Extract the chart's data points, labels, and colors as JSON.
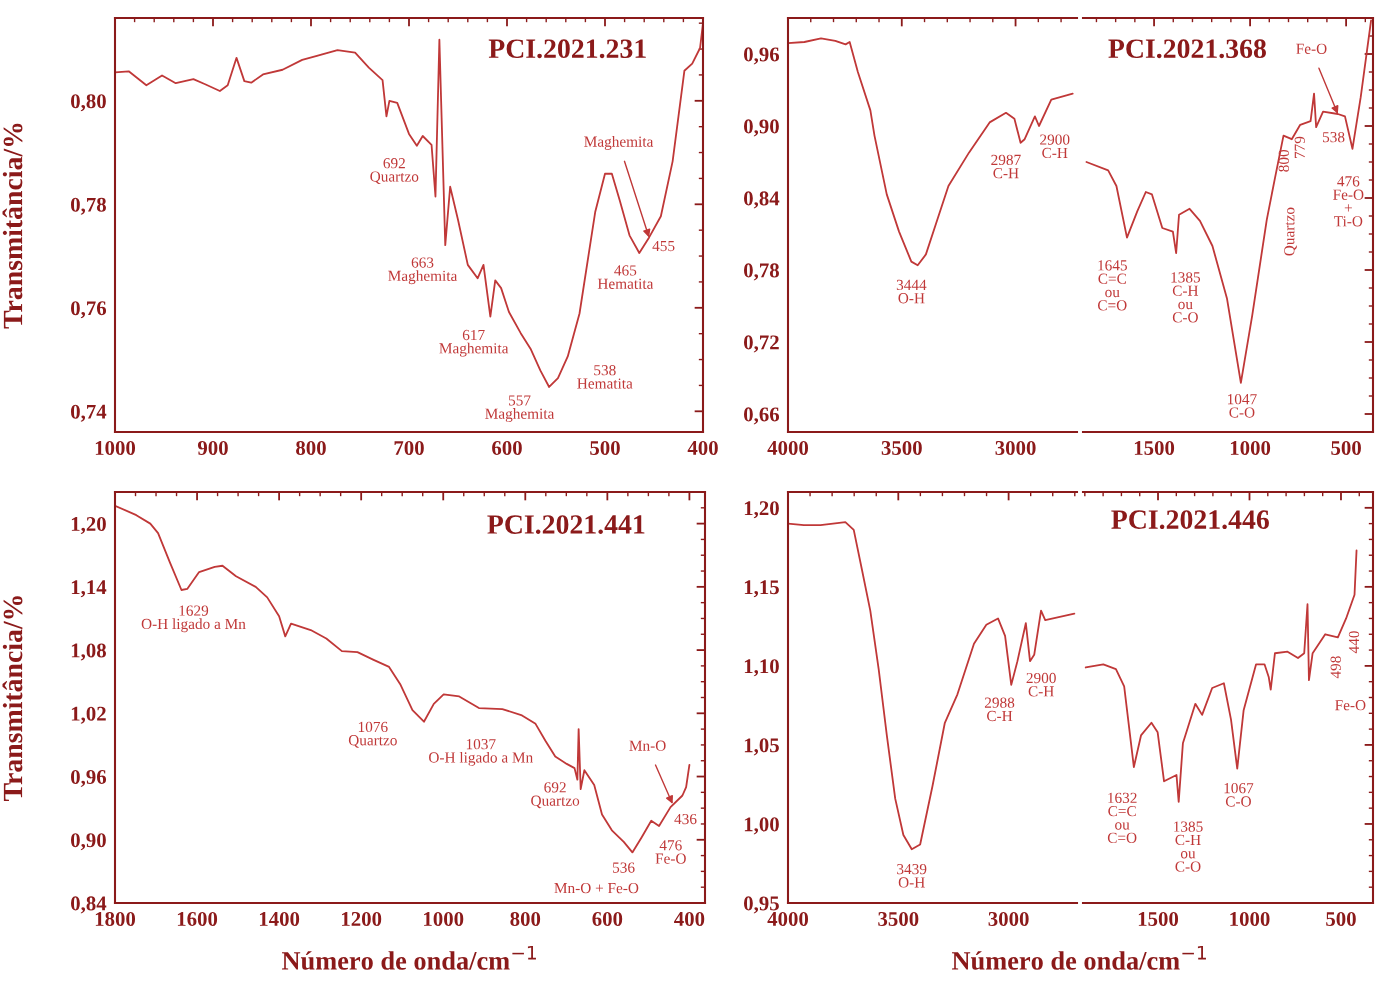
{
  "chart_data": [
    {
      "type": "line",
      "title": "PCI.2021.231",
      "ylabel": "Transmitância/%",
      "x": [
        1000,
        986,
        968,
        952,
        938,
        920,
        908,
        893,
        885,
        876,
        868,
        861,
        849,
        829,
        809,
        794,
        773,
        755,
        741,
        727,
        723,
        720,
        712,
        700,
        692,
        686,
        677,
        673,
        669,
        663,
        658,
        650,
        640,
        630,
        624,
        617,
        612,
        606,
        598,
        586,
        576,
        566,
        557,
        548,
        538,
        526,
        510,
        500,
        493,
        485,
        475,
        465,
        455,
        443,
        431,
        419,
        411,
        403,
        400
      ],
      "series": [
        {
          "color": "#c03838",
          "values": [
            0.8055,
            0.8057,
            0.803,
            0.8049,
            0.8034,
            0.8042,
            0.8032,
            0.8019,
            0.803,
            0.8083,
            0.8038,
            0.8035,
            0.8051,
            0.806,
            0.8079,
            0.8087,
            0.8098,
            0.8093,
            0.8064,
            0.804,
            0.797,
            0.8,
            0.7996,
            0.7936,
            0.7913,
            0.7932,
            0.7915,
            0.7815,
            0.8118,
            0.7721,
            0.7834,
            0.777,
            0.7683,
            0.7657,
            0.7683,
            0.7583,
            0.7653,
            0.7638,
            0.7592,
            0.7551,
            0.7521,
            0.7479,
            0.7447,
            0.7464,
            0.7506,
            0.7589,
            0.7785,
            0.7859,
            0.7859,
            0.7808,
            0.774,
            0.7706,
            0.7736,
            0.7777,
            0.7883,
            0.8058,
            0.8072,
            0.8102,
            0.815
          ]
        }
      ],
      "xlim": [
        1000,
        400
      ],
      "xticks": [
        1000,
        900,
        800,
        700,
        600,
        500,
        400
      ],
      "ylim": [
        0.736,
        0.816
      ],
      "yticks": [
        {
          "value": 0.74,
          "label": "0,74"
        },
        {
          "value": 0.76,
          "label": "0,76"
        },
        {
          "value": 0.78,
          "label": "0,78"
        },
        {
          "value": 0.8,
          "label": "0,80"
        }
      ],
      "annotations": [
        "692\nQuartzo",
        "663\nMaghemita",
        "617\nMaghemita",
        "557\nMaghemita",
        "538\nHematita",
        "465\nHematita",
        "455",
        {
          "text": "Maghemita",
          "x": 455,
          "y": 0.7736
        }
      ]
    },
    {
      "type": "line",
      "x": [
        4000,
        3928,
        3855,
        3792,
        3747,
        3729,
        3693,
        3638,
        3620,
        3566,
        3512,
        3458,
        3430,
        3394,
        3349,
        3295,
        3204,
        3114,
        3042,
        3005,
        2978,
        2960,
        2915,
        2897,
        2843,
        2749
      ],
      "series": [
        {
          "color": "#c03838",
          "values": [
            0.969,
            0.97,
            0.973,
            0.971,
            0.968,
            0.97,
            0.945,
            0.913,
            0.892,
            0.843,
            0.812,
            0.787,
            0.784,
            0.793,
            0.819,
            0.85,
            0.878,
            0.903,
            0.911,
            0.906,
            0.886,
            0.889,
            0.908,
            0.9,
            0.922,
            0.927
          ]
        }
      ],
      "xlim": [
        4000,
        2730
      ],
      "xticks": [
        4000,
        3500,
        3000
      ],
      "ylim": [
        0.645,
        0.99
      ],
      "yticks": [
        {
          "value": 0.66,
          "label": "0,66"
        },
        {
          "value": 0.72,
          "label": "0,72"
        },
        {
          "value": 0.78,
          "label": "0,78"
        },
        {
          "value": 0.84,
          "label": "0,84"
        },
        {
          "value": 0.9,
          "label": "0,90"
        },
        {
          "value": 0.96,
          "label": "0,96"
        }
      ],
      "annotations": [
        "3444\nO-H",
        "2987\nC-H",
        "2900\nC-H"
      ]
    },
    {
      "type": "line",
      "title": "PCI.2021.368",
      "x": [
        1852,
        1739,
        1696,
        1641,
        1587,
        1543,
        1511,
        1457,
        1402,
        1385,
        1370,
        1315,
        1261,
        1196,
        1120,
        1048,
        989,
        913,
        870,
        826,
        783,
        739,
        685,
        667,
        656,
        620,
        543,
        506,
        467,
        424,
        370
      ],
      "series": [
        {
          "color": "#c03838",
          "values": [
            0.87,
            0.863,
            0.85,
            0.807,
            0.829,
            0.845,
            0.843,
            0.815,
            0.812,
            0.794,
            0.826,
            0.831,
            0.821,
            0.8,
            0.756,
            0.686,
            0.742,
            0.822,
            0.857,
            0.892,
            0.889,
            0.901,
            0.904,
            0.927,
            0.899,
            0.912,
            0.91,
            0.908,
            0.881,
            0.924,
            0.988
          ]
        }
      ],
      "xlim": [
        1870,
        360
      ],
      "xticks": [
        1500,
        1000,
        500
      ],
      "ylim": [
        0.645,
        0.99
      ],
      "yticks": [
        {
          "value": 0.66,
          "label": null
        },
        {
          "value": 0.72,
          "label": null
        },
        {
          "value": 0.78,
          "label": null
        },
        {
          "value": 0.84,
          "label": null
        },
        {
          "value": 0.9,
          "label": null
        },
        {
          "value": 0.96,
          "label": null
        }
      ],
      "tick_labels": "x",
      "annotations": [
        "1645\nC=C\nou\nC=O",
        "1385\nC-H\nou\nC-O",
        "1047\nC-O",
        "800",
        "779",
        "Quartzo",
        "538",
        "476\nFe-O\n+\nTi-O",
        {
          "text": "Fe-O",
          "x": 543,
          "y": 0.91
        }
      ]
    },
    {
      "type": "line",
      "title": "PCI.2021.441",
      "ylabel": "Transmitância/%",
      "xlabel": "Número de onda/cm$^{−1}$",
      "x": [
        1800,
        1748,
        1714,
        1695,
        1666,
        1638,
        1624,
        1595,
        1557,
        1538,
        1505,
        1457,
        1429,
        1400,
        1385,
        1371,
        1323,
        1285,
        1247,
        1209,
        1171,
        1132,
        1104,
        1075,
        1047,
        1023,
        999,
        961,
        913,
        856,
        808,
        775,
        751,
        727,
        699,
        680,
        673,
        670,
        665,
        656,
        632,
        613,
        589,
        560,
        539,
        517,
        493,
        474,
        446,
        417,
        408,
        400
      ],
      "series": [
        {
          "color": "#c03838",
          "values": [
            1.217,
            1.208,
            1.2,
            1.191,
            1.163,
            1.137,
            1.138,
            1.154,
            1.159,
            1.16,
            1.15,
            1.14,
            1.13,
            1.112,
            1.093,
            1.105,
            1.099,
            1.091,
            1.079,
            1.078,
            1.071,
            1.064,
            1.047,
            1.023,
            1.012,
            1.029,
            1.038,
            1.036,
            1.025,
            1.024,
            1.018,
            1.01,
            0.994,
            0.979,
            0.972,
            0.968,
            0.957,
            1.005,
            0.948,
            0.966,
            0.952,
            0.924,
            0.909,
            0.898,
            0.888,
            0.902,
            0.918,
            0.913,
            0.931,
            0.942,
            0.95,
            0.971
          ]
        }
      ],
      "xlim": [
        1800,
        362
      ],
      "xticks": [
        1800,
        1600,
        1400,
        1200,
        1000,
        800,
        600,
        400
      ],
      "ylim": [
        0.84,
        1.23
      ],
      "yticks": [
        {
          "value": 0.84,
          "label": "0,84"
        },
        {
          "value": 0.9,
          "label": "0,90"
        },
        {
          "value": 0.96,
          "label": "0,96"
        },
        {
          "value": 1.02,
          "label": "1,02"
        },
        {
          "value": 1.08,
          "label": "1,08"
        },
        {
          "value": 1.14,
          "label": "1,14"
        },
        {
          "value": 1.2,
          "label": "1,20"
        }
      ],
      "annotations": [
        "1629\nO-H ligado a Mn",
        "1076\nQuartzo",
        "1037\nO-H ligado a Mn",
        "692\nQuartzo",
        "436",
        "476\nFe-O",
        "536",
        "Mn-O + Fe-O",
        {
          "text": "Mn-O",
          "x": 441,
          "y": 0.934
        }
      ]
    },
    {
      "type": "line",
      "xlabel": "Número de onda/cm$^{−1}$",
      "x": [
        4000,
        3928,
        3853,
        3796,
        3740,
        3702,
        3665,
        3627,
        3589,
        3552,
        3514,
        3477,
        3439,
        3401,
        3345,
        3289,
        3232,
        3157,
        3101,
        3048,
        3016,
        2988,
        2960,
        2922,
        2903,
        2884,
        2853,
        2834,
        2702
      ],
      "series": [
        {
          "color": "#c03838",
          "values": [
            1.19,
            1.189,
            1.189,
            1.19,
            1.191,
            1.186,
            1.161,
            1.135,
            1.098,
            1.056,
            1.016,
            0.993,
            0.984,
            0.987,
            1.024,
            1.064,
            1.082,
            1.114,
            1.126,
            1.13,
            1.119,
            1.088,
            1.103,
            1.127,
            1.103,
            1.107,
            1.135,
            1.129,
            1.133
          ]
        }
      ],
      "xlim": [
        4000,
        2690
      ],
      "xticks": [
        4000,
        3500,
        3000
      ],
      "ylim": [
        0.95,
        1.21
      ],
      "yticks": [
        {
          "value": 0.95,
          "label": "0,95"
        },
        {
          "value": 1.0,
          "label": "1,00"
        },
        {
          "value": 1.05,
          "label": "1,05"
        },
        {
          "value": 1.1,
          "label": "1,10"
        },
        {
          "value": 1.15,
          "label": "1,15"
        },
        {
          "value": 1.2,
          "label": "1,20"
        }
      ],
      "annotations": [
        "3439\nO-H",
        "2988\nC-H",
        "2900\nC-H"
      ]
    },
    {
      "type": "line",
      "title": "PCI.2021.446",
      "x": [
        1895,
        1799,
        1730,
        1685,
        1632,
        1593,
        1536,
        1502,
        1467,
        1399,
        1387,
        1364,
        1296,
        1259,
        1204,
        1140,
        1101,
        1067,
        1032,
        964,
        918,
        895,
        884,
        861,
        792,
        735,
        701,
        683,
        675,
        655,
        586,
        517,
        472,
        426,
        415
      ],
      "series": [
        {
          "color": "#c03838",
          "values": [
            1.099,
            1.101,
            1.098,
            1.087,
            1.036,
            1.056,
            1.064,
            1.058,
            1.027,
            1.031,
            1.014,
            1.051,
            1.076,
            1.069,
            1.086,
            1.089,
            1.066,
            1.035,
            1.072,
            1.101,
            1.101,
            1.093,
            1.085,
            1.108,
            1.109,
            1.105,
            1.108,
            1.139,
            1.091,
            1.108,
            1.12,
            1.118,
            1.13,
            1.145,
            1.173
          ]
        }
      ],
      "xlim": [
        1910,
        325
      ],
      "xticks": [
        1500,
        1000,
        500
      ],
      "ylim": [
        0.95,
        1.21
      ],
      "yticks": [
        {
          "value": 0.95,
          "label": null
        },
        {
          "value": 1.0,
          "label": null
        },
        {
          "value": 1.05,
          "label": null
        },
        {
          "value": 1.1,
          "label": null
        },
        {
          "value": 1.15,
          "label": null
        },
        {
          "value": 1.2,
          "label": null
        }
      ],
      "tick_labels": "x",
      "annotations": [
        "1632\nC=C\nou\nC=O",
        "1385\nC-H\nou\nC-O",
        "1067\nC-O",
        "498",
        "440",
        "Fe-O"
      ]
    }
  ]
}
